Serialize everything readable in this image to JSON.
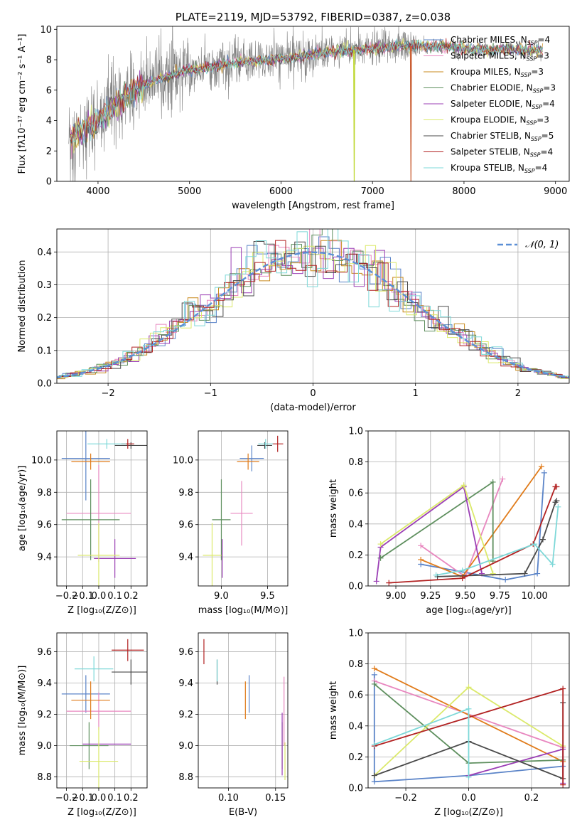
{
  "chart_data": [
    {
      "id": "spectrum",
      "type": "line",
      "title": "PLATE=2119, MJD=53792, FIBERID=0387, z=0.038",
      "xlabel": "wavelength [Angstrom, rest frame]",
      "ylabel": "Flux [fλ10⁻¹⁷ erg cm⁻² s⁻¹ A⁻¹]",
      "xlim": [
        3550,
        9150
      ],
      "ylim": [
        0,
        10.2
      ],
      "xticks": [
        4000,
        5000,
        6000,
        7000,
        8000,
        9000
      ],
      "yticks": [
        0,
        2,
        4,
        6,
        8,
        10
      ],
      "grid": false,
      "legend_position": "top-right",
      "data_color": "#808080",
      "continuum_x": [
        3680,
        3800,
        3950,
        4100,
        4300,
        4500,
        4700,
        4900,
        5100,
        5300,
        5500,
        5700,
        5900,
        6100,
        6300,
        6500,
        6700,
        6900,
        7100,
        7300,
        7500,
        7700,
        7900,
        8100,
        8300,
        8500,
        8700,
        8850
      ],
      "continuum_y": [
        2.9,
        3.2,
        3.8,
        4.6,
        5.6,
        6.3,
        6.8,
        7.2,
        7.4,
        7.6,
        7.8,
        7.9,
        8.0,
        8.1,
        8.3,
        8.5,
        8.6,
        8.7,
        8.8,
        8.9,
        8.9,
        8.9,
        8.8,
        8.7,
        8.6,
        8.7,
        8.6,
        8.7
      ],
      "model_start_x": 3700,
      "dropouts": [
        {
          "x": 6800,
          "color": "#bcd62a"
        },
        {
          "x": 7420,
          "color": "#c85a2e"
        }
      ],
      "legend": [
        {
          "name": "Chabrier MILES, N",
          "sub": "SSP",
          "val": "=4",
          "color": "#5b84c8"
        },
        {
          "name": "Salpeter MILES, N",
          "sub": "SSP",
          "val": "=3",
          "color": "#e887bf"
        },
        {
          "name": "Kroupa MILES, N",
          "sub": "SSP",
          "val": "=3",
          "color": "#c88a1e"
        },
        {
          "name": "Chabrier ELODIE, N",
          "sub": "SSP",
          "val": "=3",
          "color": "#5e8f5e"
        },
        {
          "name": "Salpeter ELODIE, N",
          "sub": "SSP",
          "val": "=4",
          "color": "#9b3fb5"
        },
        {
          "name": "Kroupa ELODIE, N",
          "sub": "SSP",
          "val": "=3",
          "color": "#dbe96b"
        },
        {
          "name": "Chabrier STELIB, N",
          "sub": "SSP",
          "val": "=5",
          "color": "#4a4a4a"
        },
        {
          "name": "Salpeter STELIB, N",
          "sub": "SSP",
          "val": "=4",
          "color": "#b22222"
        },
        {
          "name": "Kroupa STELIB, N",
          "sub": "SSP",
          "val": "=4",
          "color": "#7dd8d8"
        }
      ]
    },
    {
      "id": "residuals",
      "type": "step",
      "xlabel": "(data-model)/error",
      "ylabel": "Normed distribution",
      "xlim": [
        -2.5,
        2.5
      ],
      "ylim": [
        0,
        0.47
      ],
      "xticks": [
        -2,
        -1,
        0,
        1,
        2
      ],
      "yticks": [
        0.0,
        0.1,
        0.2,
        0.3,
        0.4
      ],
      "grid": true,
      "legend_position": "top-right",
      "normal_label": "𝒩(0, 1)",
      "normal_color": "#5b8fd6"
    },
    {
      "id": "age-vs-Z",
      "type": "errorbar",
      "xlabel": "Z [log₁₀(Z/Z⊙)]",
      "ylabel": "age  [log₁₀(age/yr)]",
      "xlim": [
        -0.26,
        0.3
      ],
      "ylim": [
        9.22,
        10.18
      ],
      "xticks": [
        -0.2,
        -0.1,
        0.0,
        0.1,
        0.2
      ],
      "yticks": [
        9.4,
        9.6,
        9.8,
        10.0
      ],
      "grid": true,
      "points": [
        {
          "x": -0.08,
          "y": 10.01,
          "xerr": 0.15,
          "yerr": 0.26,
          "color": "#5b84c8"
        },
        {
          "x": 0.0,
          "y": 9.67,
          "xerr": 0.2,
          "yerr": 0.3,
          "color": "#e887bf"
        },
        {
          "x": -0.05,
          "y": 9.99,
          "xerr": 0.12,
          "yerr": 0.05,
          "color": "#e07b1a"
        },
        {
          "x": -0.05,
          "y": 9.63,
          "xerr": 0.18,
          "yerr": 0.25,
          "color": "#5e8f5e"
        },
        {
          "x": 0.1,
          "y": 9.39,
          "xerr": 0.13,
          "yerr": 0.12,
          "color": "#9b3fb5"
        },
        {
          "x": 0.0,
          "y": 9.41,
          "xerr": 0.13,
          "yerr": 0.2,
          "color": "#dbe96b"
        },
        {
          "x": 0.2,
          "y": 10.09,
          "xerr": 0.1,
          "yerr": 0.02,
          "color": "#4a4a4a"
        },
        {
          "x": 0.18,
          "y": 10.1,
          "xerr": 0.04,
          "yerr": 0.03,
          "color": "#b22222"
        },
        {
          "x": 0.05,
          "y": 10.1,
          "xerr": 0.12,
          "yerr": 0.03,
          "color": "#7dd8d8"
        }
      ]
    },
    {
      "id": "age-vs-mass",
      "type": "errorbar",
      "xlabel": "mass [log₁₀(M/M⊙)]",
      "ylabel": "",
      "xlim": [
        8.75,
        9.72
      ],
      "ylim": [
        9.22,
        10.18
      ],
      "xticks": [
        9.0,
        9.5
      ],
      "yticks": [
        9.4,
        9.6,
        9.8,
        10.0
      ],
      "grid": true,
      "points": [
        {
          "x": 9.33,
          "y": 10.01,
          "xerr": 0.13,
          "yerr": 0.08,
          "color": "#5b84c8"
        },
        {
          "x": 9.22,
          "y": 9.67,
          "xerr": 0.12,
          "yerr": 0.2,
          "color": "#e887bf"
        },
        {
          "x": 9.29,
          "y": 9.99,
          "xerr": 0.12,
          "yerr": 0.05,
          "color": "#e07b1a"
        },
        {
          "x": 9.0,
          "y": 9.63,
          "xerr": 0.1,
          "yerr": 0.25,
          "color": "#5e8f5e"
        },
        {
          "x": 9.01,
          "y": 9.39,
          "xerr": 0.0,
          "yerr": 0.12,
          "color": "#9b3fb5"
        },
        {
          "x": 8.9,
          "y": 9.41,
          "xerr": 0.1,
          "yerr": 0.2,
          "color": "#dbe96b"
        },
        {
          "x": 9.47,
          "y": 10.09,
          "xerr": 0.08,
          "yerr": 0.02,
          "color": "#4a4a4a"
        },
        {
          "x": 9.61,
          "y": 10.1,
          "xerr": 0.06,
          "yerr": 0.05,
          "color": "#b22222"
        },
        {
          "x": 9.48,
          "y": 10.1,
          "xerr": 0.08,
          "yerr": 0.03,
          "color": "#7dd8d8"
        }
      ]
    },
    {
      "id": "massweight-vs-age",
      "type": "line",
      "xlabel": "age  [log₁₀(age/yr)]",
      "ylabel": "mass weight",
      "xlim": [
        8.8,
        10.25
      ],
      "ylim": [
        0,
        1.0
      ],
      "xticks": [
        9.0,
        9.25,
        9.5,
        9.75,
        10.0
      ],
      "yticks": [
        0.0,
        0.2,
        0.4,
        0.6,
        0.8,
        1.0
      ],
      "grid": true,
      "series": [
        {
          "color": "#5b84c8",
          "x": [
            9.18,
            9.79,
            10.02,
            10.07
          ],
          "y": [
            0.14,
            0.04,
            0.08,
            0.73
          ]
        },
        {
          "color": "#e887bf",
          "x": [
            9.18,
            9.5,
            9.77
          ],
          "y": [
            0.26,
            0.06,
            0.69
          ]
        },
        {
          "color": "#e07b1a",
          "x": [
            9.18,
            9.48,
            10.05
          ],
          "y": [
            0.17,
            0.06,
            0.77
          ]
        },
        {
          "color": "#5e8f5e",
          "x": [
            8.89,
            9.7,
            9.7
          ],
          "y": [
            0.18,
            0.67,
            0.16
          ]
        },
        {
          "color": "#9b3fb5",
          "x": [
            8.86,
            8.89,
            9.49,
            9.62
          ],
          "y": [
            0.03,
            0.25,
            0.64,
            0.08
          ]
        },
        {
          "color": "#dbe96b",
          "x": [
            8.89,
            9.49,
            9.7
          ],
          "y": [
            0.27,
            0.65,
            0.08
          ]
        },
        {
          "color": "#4a4a4a",
          "x": [
            9.3,
            9.93,
            10.06,
            10.15,
            10.16
          ],
          "y": [
            0.06,
            0.08,
            0.3,
            0.54,
            0.55
          ]
        },
        {
          "color": "#b22222",
          "x": [
            8.95,
            9.48,
            9.99,
            10.15,
            10.16
          ],
          "y": [
            0.02,
            0.05,
            0.27,
            0.64,
            0.64
          ]
        },
        {
          "color": "#7dd8d8",
          "x": [
            9.29,
            9.48,
            10.0,
            10.13,
            10.17
          ],
          "y": [
            0.07,
            0.1,
            0.27,
            0.14,
            0.51
          ]
        }
      ]
    },
    {
      "id": "mass-vs-Z",
      "type": "errorbar",
      "xlabel": "Z [log₁₀(Z/Z⊙)]",
      "ylabel": "mass [log₁₀(M/M⊙)]",
      "xlim": [
        -0.26,
        0.3
      ],
      "ylim": [
        8.73,
        9.72
      ],
      "xticks": [
        -0.2,
        -0.1,
        0.0,
        0.1,
        0.2
      ],
      "yticks": [
        8.8,
        9.0,
        9.2,
        9.4,
        9.6
      ],
      "grid": true,
      "points": [
        {
          "x": -0.08,
          "y": 9.33,
          "xerr": 0.15,
          "yerr": 0.12,
          "color": "#5b84c8"
        },
        {
          "x": 0.0,
          "y": 9.22,
          "xerr": 0.2,
          "yerr": 0.12,
          "color": "#e887bf"
        },
        {
          "x": -0.05,
          "y": 9.29,
          "xerr": 0.12,
          "yerr": 0.12,
          "color": "#e07b1a"
        },
        {
          "x": -0.06,
          "y": 9.0,
          "xerr": 0.12,
          "yerr": 0.15,
          "color": "#5e8f5e"
        },
        {
          "x": 0.05,
          "y": 9.01,
          "xerr": 0.15,
          "yerr": 0.0,
          "color": "#9b3fb5"
        },
        {
          "x": 0.0,
          "y": 8.9,
          "xerr": 0.12,
          "yerr": 0.22,
          "color": "#dbe96b"
        },
        {
          "x": 0.2,
          "y": 9.47,
          "xerr": 0.12,
          "yerr": 0.08,
          "color": "#4a4a4a"
        },
        {
          "x": 0.18,
          "y": 9.61,
          "xerr": 0.1,
          "yerr": 0.07,
          "color": "#b22222"
        },
        {
          "x": -0.03,
          "y": 9.49,
          "xerr": 0.12,
          "yerr": 0.08,
          "color": "#7dd8d8"
        }
      ]
    },
    {
      "id": "mass-vs-EBV",
      "type": "errorbar",
      "xlabel": "E(B-V)",
      "ylabel": "",
      "xlim": [
        0.068,
        0.163
      ],
      "ylim": [
        8.73,
        9.72
      ],
      "xticks": [
        0.1,
        0.15
      ],
      "yticks": [
        8.8,
        9.0,
        9.2,
        9.4,
        9.6
      ],
      "grid": true,
      "points": [
        {
          "x": 0.122,
          "y": 9.33,
          "xerr": 0.0,
          "yerr": 0.12,
          "color": "#5b84c8"
        },
        {
          "x": 0.159,
          "y": 9.22,
          "xerr": 0.0,
          "yerr": 0.22,
          "color": "#e887bf"
        },
        {
          "x": 0.118,
          "y": 9.29,
          "xerr": 0.0,
          "yerr": 0.12,
          "color": "#e07b1a"
        },
        {
          "x": 0.157,
          "y": 9.0,
          "xerr": 0.0,
          "yerr": 0.15,
          "color": "#5e8f5e"
        },
        {
          "x": 0.157,
          "y": 9.01,
          "xerr": 0.0,
          "yerr": 0.2,
          "color": "#9b3fb5"
        },
        {
          "x": 0.16,
          "y": 8.9,
          "xerr": 0.0,
          "yerr": 0.12,
          "color": "#dbe96b"
        },
        {
          "x": 0.088,
          "y": 9.47,
          "xerr": 0.0,
          "yerr": 0.08,
          "color": "#4a4a4a"
        },
        {
          "x": 0.074,
          "y": 9.6,
          "xerr": 0.0,
          "yerr": 0.08,
          "color": "#b22222"
        },
        {
          "x": 0.088,
          "y": 9.48,
          "xerr": 0.0,
          "yerr": 0.07,
          "color": "#7dd8d8"
        }
      ]
    },
    {
      "id": "massweight-vs-Z",
      "type": "line",
      "xlabel": "Z [log₁₀(Z/Z⊙)]",
      "ylabel": "mass weight",
      "xlim": [
        -0.32,
        0.32
      ],
      "ylim": [
        0,
        1.0
      ],
      "xticks": [
        -0.2,
        0.0,
        0.2
      ],
      "yticks": [
        0.0,
        0.2,
        0.4,
        0.6,
        0.8,
        1.0
      ],
      "grid": true,
      "series": [
        {
          "color": "#5b84c8",
          "x": [
            -0.3,
            -0.3,
            0.0,
            0.3
          ],
          "y": [
            0.73,
            0.04,
            0.08,
            0.14
          ]
        },
        {
          "color": "#e887bf",
          "x": [
            -0.3,
            0.3,
            0.3
          ],
          "y": [
            0.69,
            0.26,
            0.06
          ]
        },
        {
          "color": "#e07b1a",
          "x": [
            -0.3,
            0.3,
            0.3
          ],
          "y": [
            0.77,
            0.17,
            0.06
          ]
        },
        {
          "color": "#5e8f5e",
          "x": [
            -0.3,
            0.0,
            0.3
          ],
          "y": [
            0.67,
            0.16,
            0.18
          ]
        },
        {
          "color": "#9b3fb5",
          "x": [
            0.0,
            0.3,
            0.3
          ],
          "y": [
            0.08,
            0.25,
            0.03
          ]
        },
        {
          "color": "#dbe96b",
          "x": [
            -0.3,
            0.0,
            0.3
          ],
          "y": [
            0.08,
            0.65,
            0.27
          ]
        },
        {
          "color": "#4a4a4a",
          "x": [
            -0.3,
            0.0,
            0.3,
            0.3
          ],
          "y": [
            0.08,
            0.3,
            0.06,
            0.55
          ]
        },
        {
          "color": "#b22222",
          "x": [
            -0.3,
            0.3,
            0.3
          ],
          "y": [
            0.27,
            0.64,
            0.02
          ]
        },
        {
          "color": "#7dd8d8",
          "x": [
            -0.3,
            0.0,
            0.0
          ],
          "y": [
            0.28,
            0.51,
            0.07
          ]
        }
      ]
    }
  ]
}
